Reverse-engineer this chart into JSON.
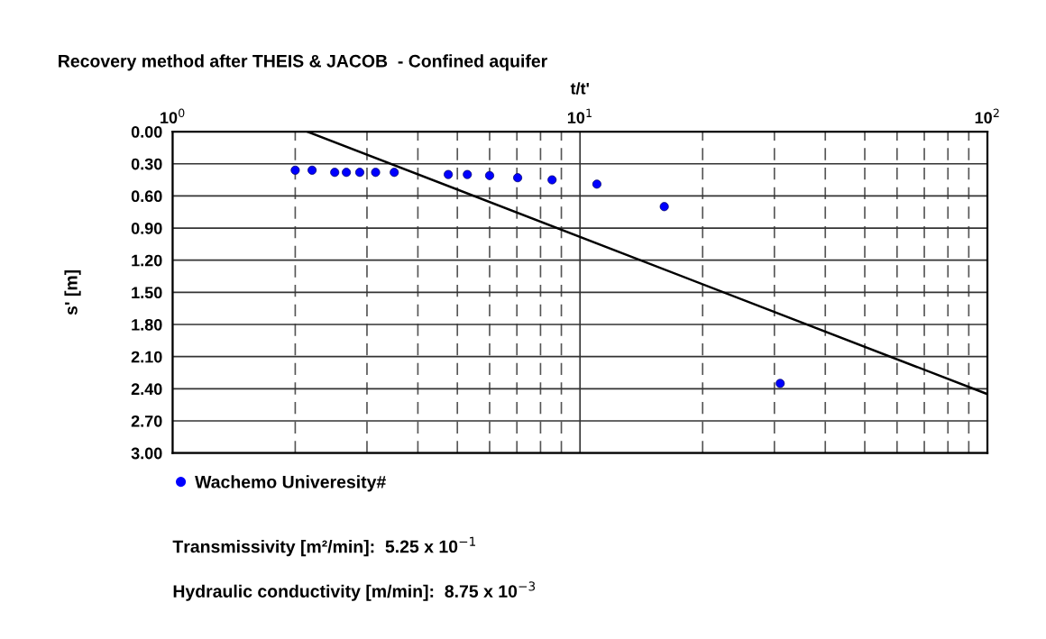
{
  "chart_data": {
    "type": "scatter",
    "title": "Recovery method after THEIS & JACOB  - Confined aquifer",
    "xlabel": "t/t'",
    "ylabel": "s' [m]",
    "log": "x",
    "grid": true,
    "legend": "bottom left",
    "marker": "circle",
    "xlim": [
      1,
      100
    ],
    "xticks": [
      {
        "value": 1,
        "label": "10$^{0}$"
      },
      {
        "value": 2,
        "label": null
      },
      {
        "value": 3,
        "label": null
      },
      {
        "value": 4,
        "label": null
      },
      {
        "value": 5,
        "label": null
      },
      {
        "value": 6,
        "label": null
      },
      {
        "value": 7,
        "label": null
      },
      {
        "value": 8,
        "label": null
      },
      {
        "value": 9,
        "label": null
      },
      {
        "value": 10,
        "label": "10$^{1}$"
      },
      {
        "value": 20,
        "label": null
      },
      {
        "value": 30,
        "label": null
      },
      {
        "value": 40,
        "label": null
      },
      {
        "value": 50,
        "label": null
      },
      {
        "value": 60,
        "label": null
      },
      {
        "value": 70,
        "label": null
      },
      {
        "value": 80,
        "label": null
      },
      {
        "value": 90,
        "label": null
      },
      {
        "value": 100,
        "label": "10$^{2}$"
      }
    ],
    "ylim": [
      3.0,
      0.0
    ],
    "yticks": [
      {
        "value": 0,
        "label": "0.00"
      },
      {
        "value": 0.3,
        "label": "0.30"
      },
      {
        "value": 0.6,
        "label": "0.60"
      },
      {
        "value": 0.9,
        "label": "0.90"
      },
      {
        "value": 1.2,
        "label": "1.20"
      },
      {
        "value": 1.5,
        "label": "1.50"
      },
      {
        "value": 1.8,
        "label": "1.80"
      },
      {
        "value": 2.1,
        "label": "2.10"
      },
      {
        "value": 2.4,
        "label": "2.40"
      },
      {
        "value": 2.7,
        "label": "2.70"
      },
      {
        "value": 3.0,
        "label": "3.00"
      }
    ],
    "series": [
      {
        "name": "Wachemo Univeresity#",
        "color": "#0000ff",
        "x": [
          2.0,
          2.2,
          2.5,
          2.67,
          2.88,
          3.15,
          3.5,
          4.75,
          5.29,
          6.0,
          7.03,
          8.54,
          11.0,
          16.1,
          31.0
        ],
        "values": [
          0.36,
          0.36,
          0.38,
          0.38,
          0.38,
          0.38,
          0.38,
          0.4,
          0.4,
          0.41,
          0.43,
          0.45,
          0.49,
          0.7,
          2.35
        ]
      },
      {
        "type": "line",
        "color": "#000000",
        "marker": "none",
        "x": [
          2.14,
          100
        ],
        "values": [
          0.0,
          2.45
        ]
      }
    ],
    "annotations": [
      "Transmissivity [m²/min]:  5.25 x 10$^{−1}$",
      "Hydraulic conductivity [m/min]:  8.75 x 10$^{−3}$"
    ]
  }
}
